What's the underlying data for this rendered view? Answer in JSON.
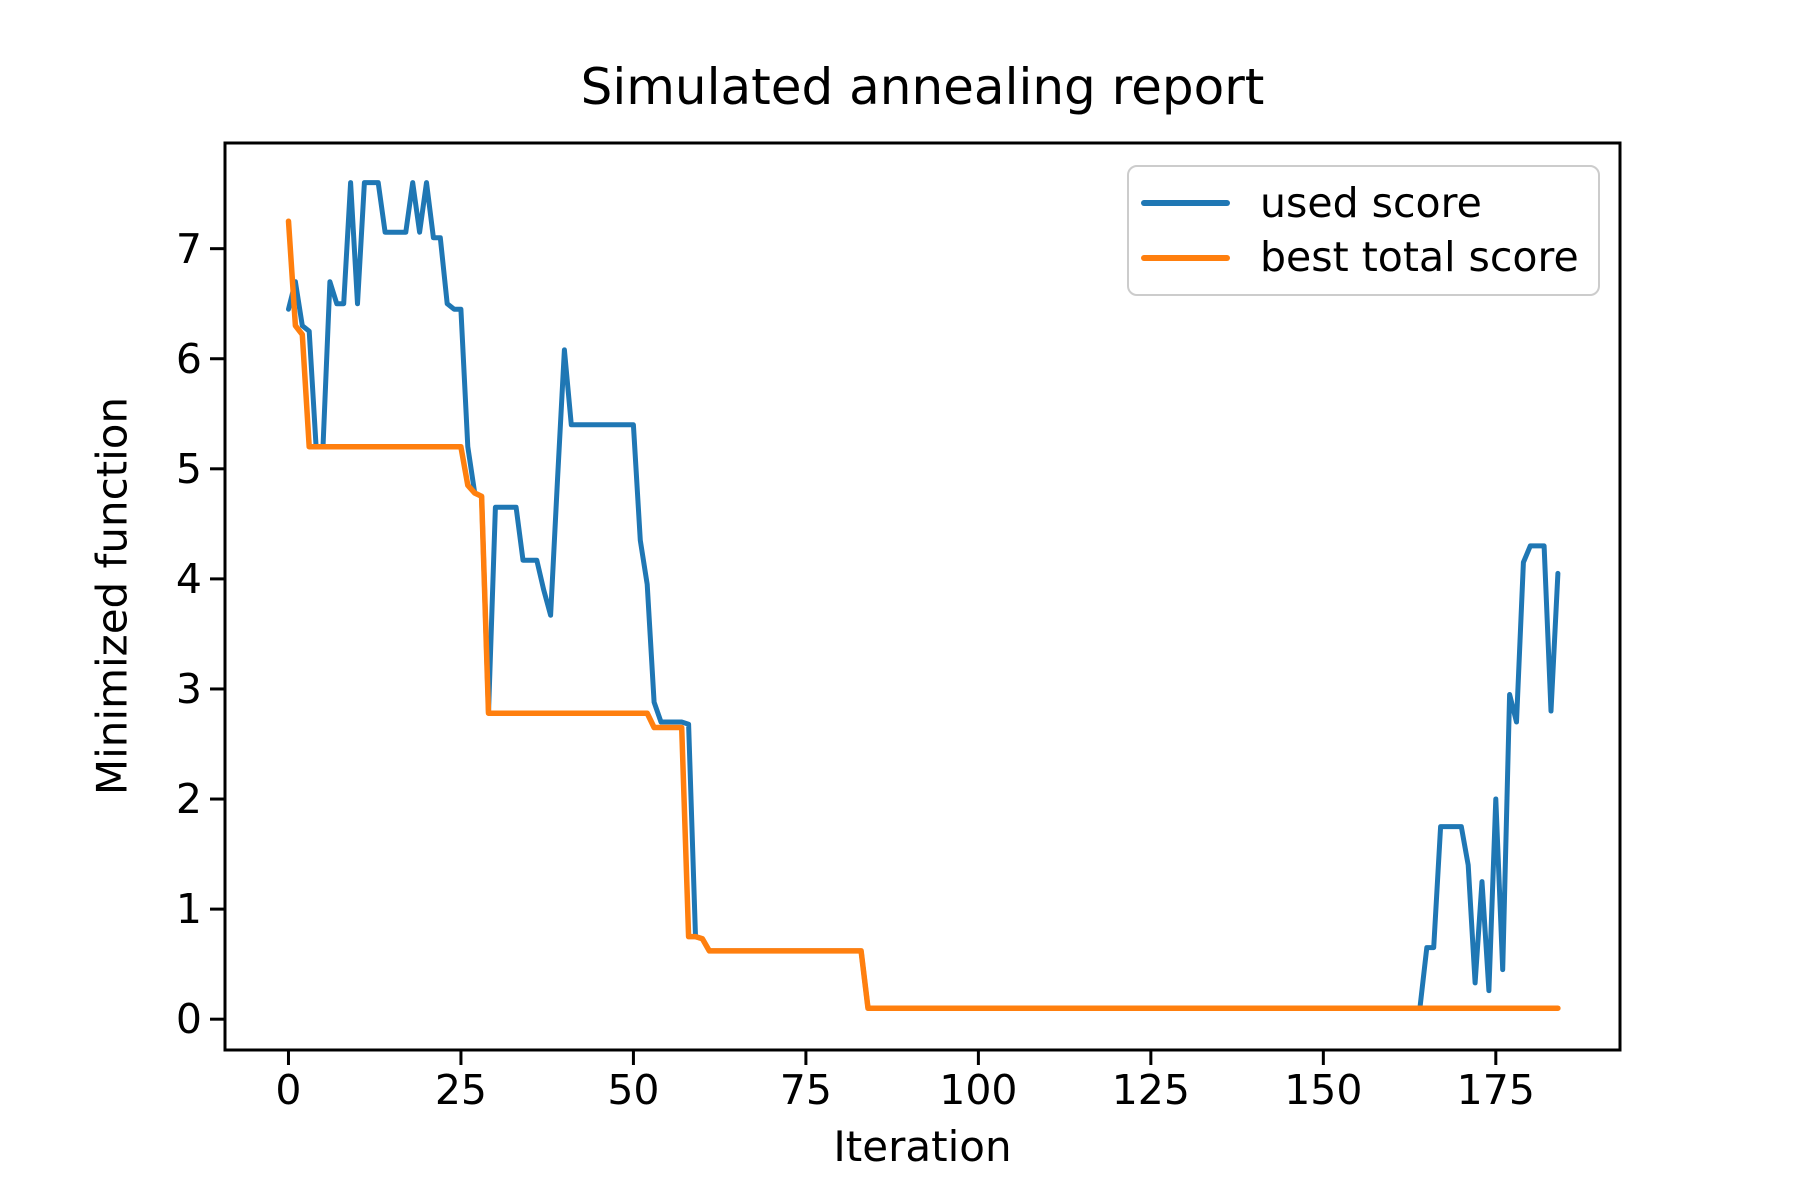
{
  "chart_data": {
    "type": "line",
    "title": "Simulated annealing report",
    "xlabel": "Iteration",
    "ylabel": "Minimized function",
    "x_ticks": [
      0,
      25,
      50,
      75,
      100,
      125,
      150,
      175
    ],
    "y_ticks": [
      0,
      1,
      2,
      3,
      4,
      5,
      6,
      7
    ],
    "xlim": [
      -9.2,
      193.0
    ],
    "ylim": [
      -0.28,
      7.96
    ],
    "grid": false,
    "legend_position": "upper right",
    "x_start": 0,
    "n_points": 185,
    "series": [
      {
        "name": "used score",
        "color": "#1f77b4",
        "values": [
          6.45,
          6.7,
          6.3,
          6.25,
          5.2,
          5.2,
          6.7,
          6.5,
          6.5,
          7.6,
          6.5,
          7.6,
          7.6,
          7.6,
          7.15,
          7.15,
          7.15,
          7.15,
          7.6,
          7.15,
          7.6,
          7.1,
          7.1,
          6.5,
          6.45,
          6.45,
          5.2,
          4.78,
          4.75,
          2.78,
          4.65,
          4.65,
          4.65,
          4.65,
          4.17,
          4.17,
          4.17,
          3.9,
          3.67,
          4.9,
          6.08,
          5.4,
          5.4,
          5.4,
          5.4,
          5.4,
          5.4,
          5.4,
          5.4,
          5.4,
          5.4,
          4.35,
          3.95,
          2.88,
          2.7,
          2.7,
          2.7,
          2.7,
          2.68,
          0.75,
          0.73,
          0.62,
          0.62,
          0.62,
          0.62,
          0.62,
          0.62,
          0.62,
          0.62,
          0.62,
          0.62,
          0.62,
          0.62,
          0.62,
          0.62,
          0.62,
          0.62,
          0.62,
          0.62,
          0.62,
          0.62,
          0.62,
          0.62,
          0.62,
          0.1,
          0.1,
          0.1,
          0.1,
          0.1,
          0.1,
          0.1,
          0.1,
          0.1,
          0.1,
          0.1,
          0.1,
          0.1,
          0.1,
          0.1,
          0.1,
          0.1,
          0.1,
          0.1,
          0.1,
          0.1,
          0.1,
          0.1,
          0.1,
          0.1,
          0.1,
          0.1,
          0.1,
          0.1,
          0.1,
          0.1,
          0.1,
          0.1,
          0.1,
          0.1,
          0.1,
          0.1,
          0.1,
          0.1,
          0.1,
          0.1,
          0.1,
          0.1,
          0.1,
          0.1,
          0.1,
          0.1,
          0.1,
          0.1,
          0.1,
          0.1,
          0.1,
          0.1,
          0.1,
          0.1,
          0.1,
          0.1,
          0.1,
          0.1,
          0.1,
          0.1,
          0.1,
          0.1,
          0.1,
          0.1,
          0.1,
          0.1,
          0.1,
          0.1,
          0.1,
          0.1,
          0.1,
          0.1,
          0.1,
          0.1,
          0.1,
          0.1,
          0.1,
          0.1,
          0.1,
          0.1,
          0.65,
          0.65,
          1.75,
          1.75,
          1.75,
          1.75,
          1.4,
          0.33,
          1.25,
          0.26,
          2.0,
          0.45,
          2.95,
          2.7,
          4.15,
          4.3,
          4.3,
          4.3,
          2.8,
          4.05
        ]
      },
      {
        "name": "best total score",
        "color": "#ff7f0e",
        "values": [
          7.25,
          6.3,
          6.22,
          5.2,
          5.2,
          5.2,
          5.2,
          5.2,
          5.2,
          5.2,
          5.2,
          5.2,
          5.2,
          5.2,
          5.2,
          5.2,
          5.2,
          5.2,
          5.2,
          5.2,
          5.2,
          5.2,
          5.2,
          5.2,
          5.2,
          5.2,
          4.85,
          4.78,
          4.75,
          2.78,
          2.78,
          2.78,
          2.78,
          2.78,
          2.78,
          2.78,
          2.78,
          2.78,
          2.78,
          2.78,
          2.78,
          2.78,
          2.78,
          2.78,
          2.78,
          2.78,
          2.78,
          2.78,
          2.78,
          2.78,
          2.78,
          2.78,
          2.78,
          2.65,
          2.65,
          2.65,
          2.65,
          2.65,
          0.75,
          0.75,
          0.73,
          0.62,
          0.62,
          0.62,
          0.62,
          0.62,
          0.62,
          0.62,
          0.62,
          0.62,
          0.62,
          0.62,
          0.62,
          0.62,
          0.62,
          0.62,
          0.62,
          0.62,
          0.62,
          0.62,
          0.62,
          0.62,
          0.62,
          0.62,
          0.1,
          0.1,
          0.1,
          0.1,
          0.1,
          0.1,
          0.1,
          0.1,
          0.1,
          0.1,
          0.1,
          0.1,
          0.1,
          0.1,
          0.1,
          0.1,
          0.1,
          0.1,
          0.1,
          0.1,
          0.1,
          0.1,
          0.1,
          0.1,
          0.1,
          0.1,
          0.1,
          0.1,
          0.1,
          0.1,
          0.1,
          0.1,
          0.1,
          0.1,
          0.1,
          0.1,
          0.1,
          0.1,
          0.1,
          0.1,
          0.1,
          0.1,
          0.1,
          0.1,
          0.1,
          0.1,
          0.1,
          0.1,
          0.1,
          0.1,
          0.1,
          0.1,
          0.1,
          0.1,
          0.1,
          0.1,
          0.1,
          0.1,
          0.1,
          0.1,
          0.1,
          0.1,
          0.1,
          0.1,
          0.1,
          0.1,
          0.1,
          0.1,
          0.1,
          0.1,
          0.1,
          0.1,
          0.1,
          0.1,
          0.1,
          0.1,
          0.1,
          0.1,
          0.1,
          0.1,
          0.1,
          0.1,
          0.1,
          0.1,
          0.1,
          0.1,
          0.1,
          0.1,
          0.1,
          0.1,
          0.1,
          0.1,
          0.1,
          0.1,
          0.1,
          0.1,
          0.1,
          0.1,
          0.1,
          0.1,
          0.1
        ]
      }
    ]
  }
}
